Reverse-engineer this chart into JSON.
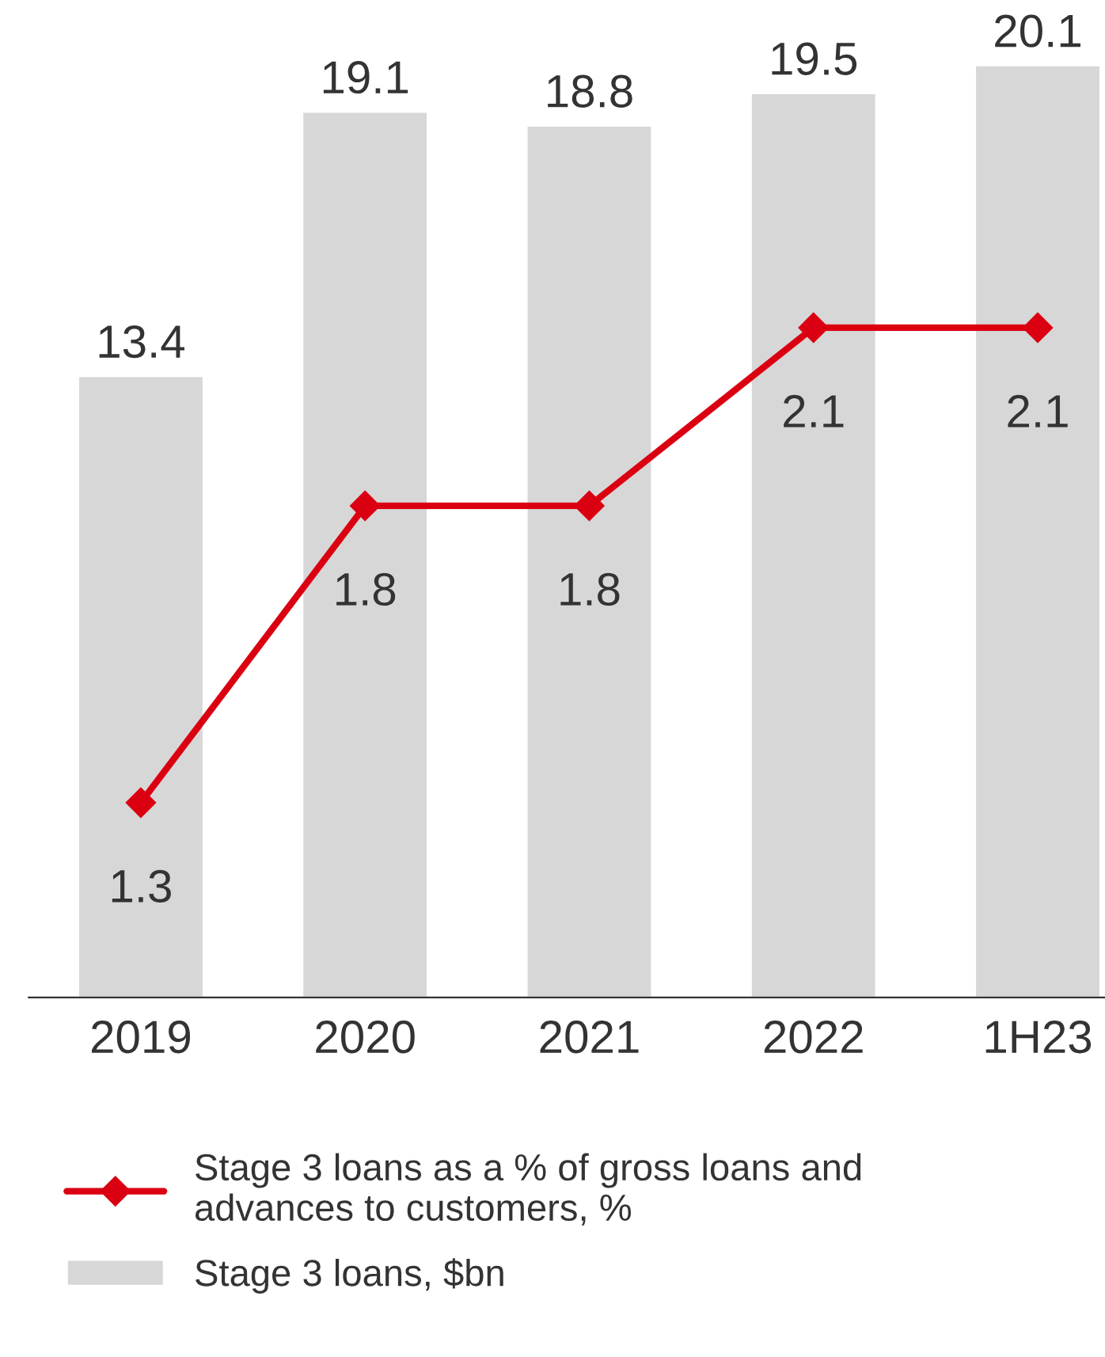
{
  "chart_data": {
    "type": "bar",
    "categories": [
      "2019",
      "2020",
      "2021",
      "2022",
      "1H23"
    ],
    "series": [
      {
        "name": "Stage 3 loans as a % of gross loans and advances to customers, %",
        "type": "line",
        "axis": "y2",
        "color": "#db0011",
        "values": [
          1.3,
          1.8,
          1.8,
          2.1,
          2.1
        ]
      },
      {
        "name": "Stage 3 loans, $bn",
        "color": "#d7d7d7",
        "values": [
          13.4,
          19.1,
          18.8,
          19.5,
          20.1
        ]
      }
    ],
    "tick_labels": "x",
    "data_labels": true,
    "marker": "diamond",
    "line_style": "solid",
    "grid": false,
    "legend": "bottom"
  }
}
